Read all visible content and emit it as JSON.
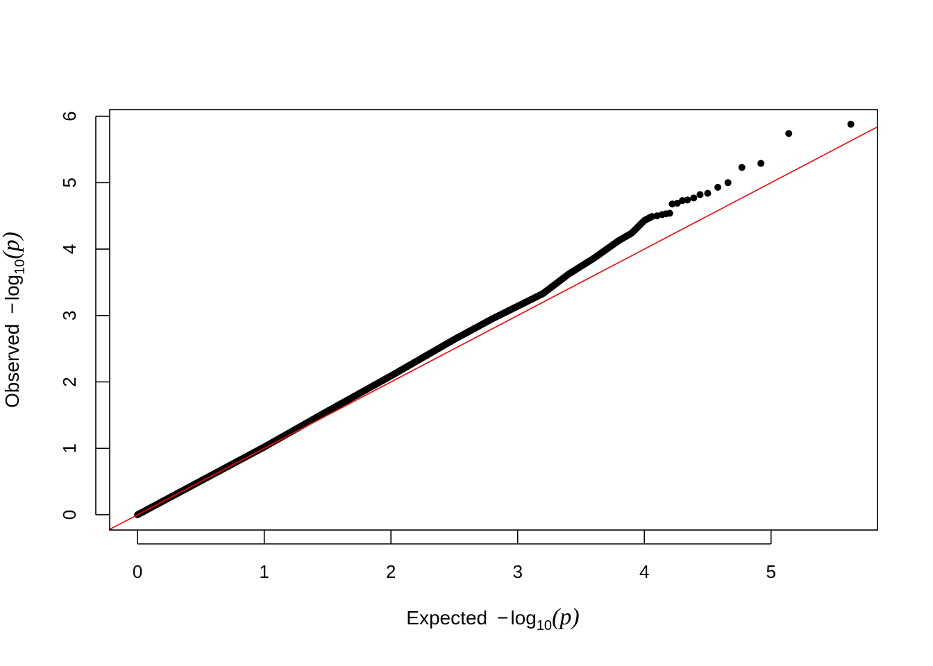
{
  "chart_data": {
    "type": "scatter",
    "title": "",
    "xlabel": {
      "prefix": "Expected",
      "minus": "−",
      "log": "log",
      "base": "10",
      "var": "p"
    },
    "ylabel": {
      "prefix": "Observed",
      "minus": "−",
      "log": "log",
      "base": "10",
      "var": "p"
    },
    "xlim": [
      -0.22,
      5.84
    ],
    "ylim": [
      -0.23,
      6.1
    ],
    "x_ticks": [
      "0",
      "1",
      "2",
      "3",
      "4",
      "5"
    ],
    "y_ticks": [
      "0",
      "1",
      "2",
      "3",
      "4",
      "5",
      "6"
    ],
    "reference_line": {
      "slope": 1,
      "intercept": 0,
      "color": "#ff0000"
    },
    "point_color": "#000000",
    "grid": false,
    "tail_points": [
      [
        4.06,
        4.49
      ],
      [
        4.1,
        4.5
      ],
      [
        4.14,
        4.52
      ],
      [
        4.17,
        4.53
      ],
      [
        4.2,
        4.54
      ],
      [
        4.22,
        4.68
      ],
      [
        4.26,
        4.69
      ],
      [
        4.3,
        4.73
      ],
      [
        4.34,
        4.74
      ],
      [
        4.39,
        4.77
      ],
      [
        4.44,
        4.82
      ],
      [
        4.5,
        4.84
      ],
      [
        4.58,
        4.93
      ],
      [
        4.66,
        5.0
      ],
      [
        4.77,
        5.23
      ],
      [
        4.92,
        5.29
      ],
      [
        5.14,
        5.74
      ],
      [
        5.63,
        5.88
      ]
    ],
    "bulk_curve": [
      [
        0.0,
        0.0
      ],
      [
        1.0,
        1.02
      ],
      [
        1.5,
        1.56
      ],
      [
        2.0,
        2.09
      ],
      [
        2.5,
        2.64
      ],
      [
        2.8,
        2.95
      ],
      [
        3.0,
        3.14
      ],
      [
        3.2,
        3.33
      ],
      [
        3.4,
        3.62
      ],
      [
        3.6,
        3.86
      ],
      [
        3.8,
        4.13
      ],
      [
        3.9,
        4.24
      ],
      [
        4.0,
        4.43
      ],
      [
        4.06,
        4.49
      ]
    ]
  }
}
